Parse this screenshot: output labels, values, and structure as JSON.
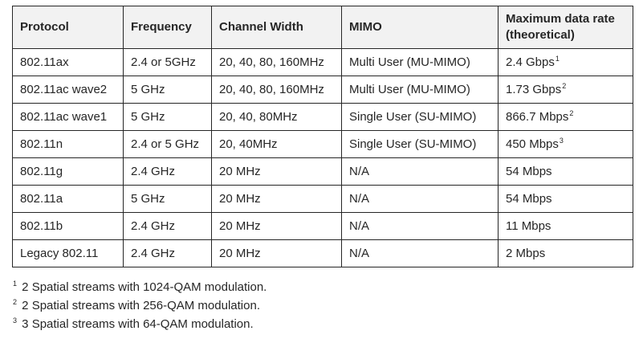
{
  "colors": {
    "header_background": "#f2f2f2",
    "border": "#262626",
    "text": "#262626",
    "page_background": "#ffffff"
  },
  "table": {
    "columns": [
      {
        "label": "Protocol"
      },
      {
        "label": "Frequency"
      },
      {
        "label": "Channel Width"
      },
      {
        "label": "MIMO"
      },
      {
        "label": "Maximum data rate (theoretical)"
      }
    ],
    "rows": [
      {
        "protocol": "802.11ax",
        "frequency": "2.4 or 5GHz",
        "channel_width": "20, 40, 80, 160MHz",
        "mimo": "Multi User (MU-MIMO)",
        "max_rate": "2.4 Gbps",
        "footnote_ref": "1"
      },
      {
        "protocol": "802.11ac wave2",
        "frequency": "5 GHz",
        "channel_width": "20, 40, 80, 160MHz",
        "mimo": "Multi User (MU-MIMO)",
        "max_rate": "1.73 Gbps",
        "footnote_ref": "2"
      },
      {
        "protocol": "802.11ac wave1",
        "frequency": "5 GHz",
        "channel_width": "20, 40, 80MHz",
        "mimo": "Single User (SU-MIMO)",
        "max_rate": "866.7 Mbps",
        "footnote_ref": "2"
      },
      {
        "protocol": "802.11n",
        "frequency": "2.4 or 5 GHz",
        "channel_width": "20, 40MHz",
        "mimo": "Single User (SU-MIMO)",
        "max_rate": "450 Mbps",
        "footnote_ref": "3"
      },
      {
        "protocol": "802.11g",
        "frequency": "2.4 GHz",
        "channel_width": "20 MHz",
        "mimo": "N/A",
        "max_rate": "54 Mbps",
        "footnote_ref": ""
      },
      {
        "protocol": "802.11a",
        "frequency": "5 GHz",
        "channel_width": "20 MHz",
        "mimo": "N/A",
        "max_rate": "54 Mbps",
        "footnote_ref": ""
      },
      {
        "protocol": "802.11b",
        "frequency": "2.4 GHz",
        "channel_width": "20 MHz",
        "mimo": "N/A",
        "max_rate": "11 Mbps",
        "footnote_ref": ""
      },
      {
        "protocol": "Legacy 802.11",
        "frequency": "2.4 GHz",
        "channel_width": "20 MHz",
        "mimo": "N/A",
        "max_rate": "2 Mbps",
        "footnote_ref": ""
      }
    ]
  },
  "footnotes": [
    {
      "marker": "1",
      "text": "2 Spatial streams with 1024-QAM modulation."
    },
    {
      "marker": "2",
      "text": "2 Spatial streams with 256-QAM modulation."
    },
    {
      "marker": "3",
      "text": "3 Spatial streams with 64-QAM modulation."
    }
  ]
}
